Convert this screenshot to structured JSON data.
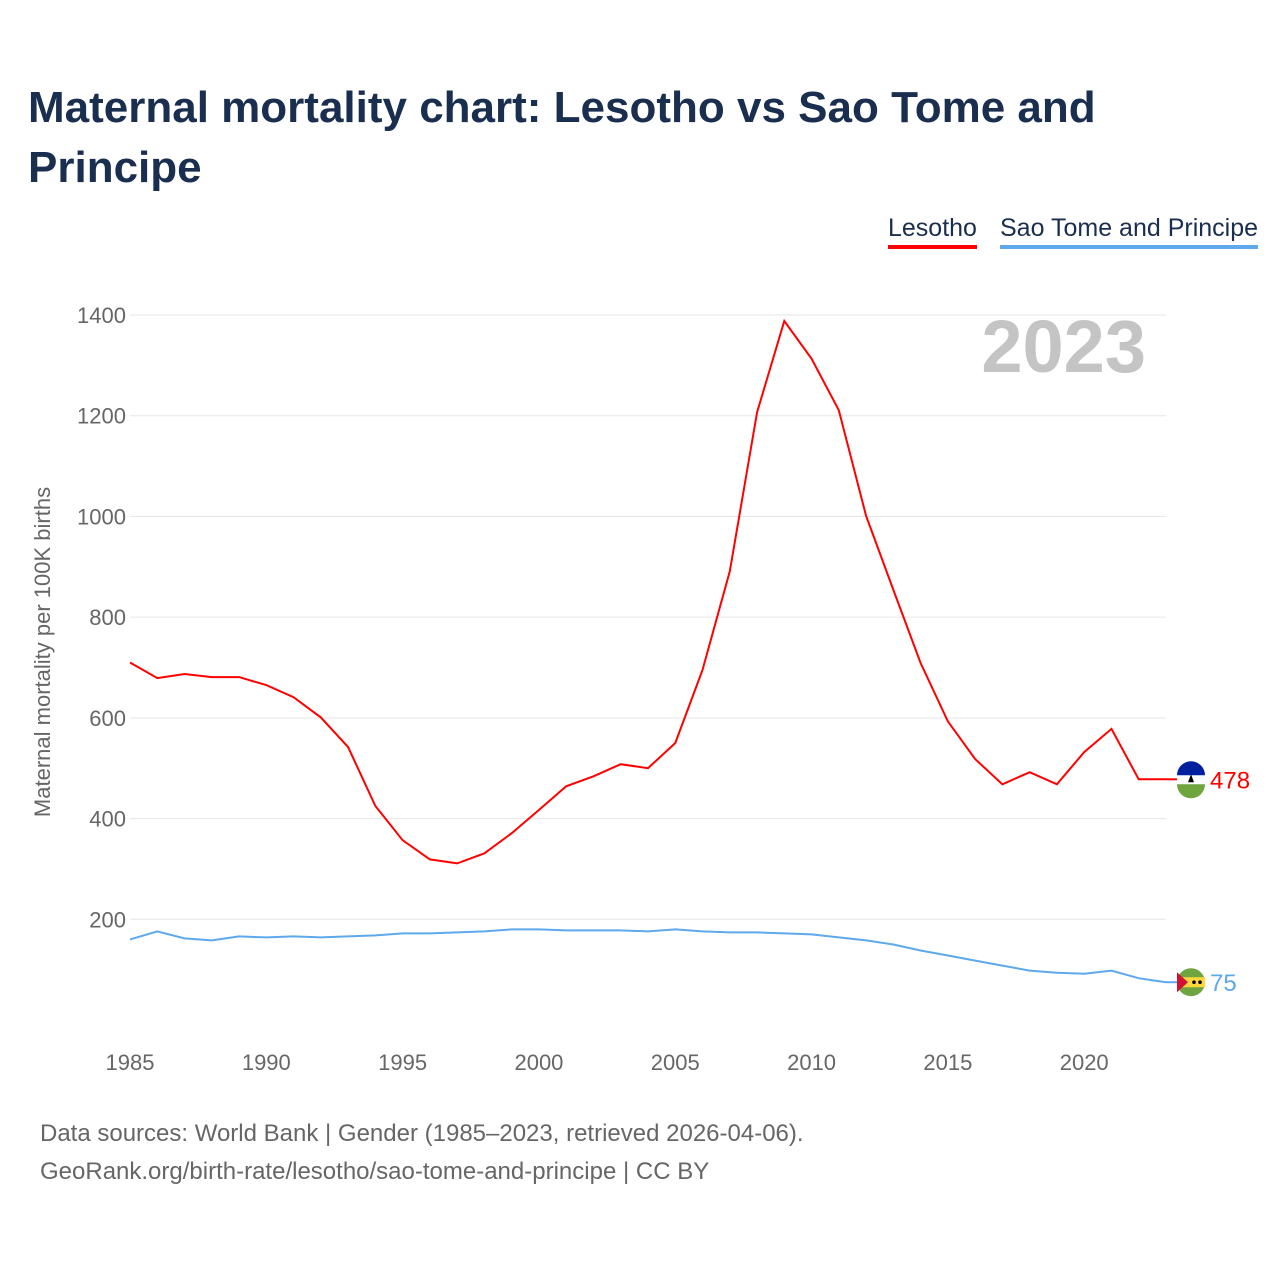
{
  "chart_data": {
    "type": "line",
    "title": "Maternal mortality chart: Lesotho vs Sao Tome and Principe",
    "ylabel": "Maternal mortality per 100K births",
    "xlabel": "",
    "year_watermark": "2023",
    "xlim": [
      1985,
      2023
    ],
    "ylim": [
      0,
      1400
    ],
    "x_ticks": [
      1985,
      1990,
      1995,
      2000,
      2005,
      2010,
      2015,
      2020
    ],
    "y_ticks": [
      200,
      400,
      600,
      800,
      1000,
      1200,
      1400
    ],
    "grid": true,
    "legend_placement": "top-right",
    "x": [
      1985,
      1986,
      1987,
      1988,
      1989,
      1990,
      1991,
      1992,
      1993,
      1994,
      1995,
      1996,
      1997,
      1998,
      1999,
      2000,
      2001,
      2002,
      2003,
      2004,
      2005,
      2006,
      2007,
      2008,
      2009,
      2010,
      2011,
      2012,
      2013,
      2014,
      2015,
      2016,
      2017,
      2018,
      2019,
      2020,
      2021,
      2022,
      2023
    ],
    "series": [
      {
        "name": "Lesotho",
        "color": "#ff0000",
        "end_label": "478",
        "values": [
          710,
          679,
          687,
          681,
          681,
          665,
          641,
          601,
          542,
          425,
          357,
          319,
          311,
          331,
          371,
          417,
          464,
          484,
          508,
          500,
          550,
          695,
          891,
          1207,
          1388,
          1313,
          1211,
          1001,
          854,
          709,
          593,
          518,
          468,
          492,
          468,
          532,
          578,
          478,
          478
        ]
      },
      {
        "name": "Sao Tome and Principe",
        "color": "#5ea8ec",
        "end_label": "75",
        "values": [
          160,
          176,
          162,
          158,
          166,
          164,
          166,
          164,
          166,
          168,
          172,
          172,
          174,
          176,
          180,
          180,
          178,
          178,
          178,
          176,
          180,
          176,
          174,
          174,
          172,
          170,
          164,
          158,
          150,
          138,
          128,
          118,
          108,
          98,
          94,
          92,
          98,
          83,
          75
        ]
      }
    ]
  },
  "footer": {
    "line1": "Data sources: World Bank | Gender (1985–2023, retrieved 2026-04-06).",
    "line2": "GeoRank.org/birth-rate/lesotho/sao-tome-and-principe | CC BY"
  }
}
